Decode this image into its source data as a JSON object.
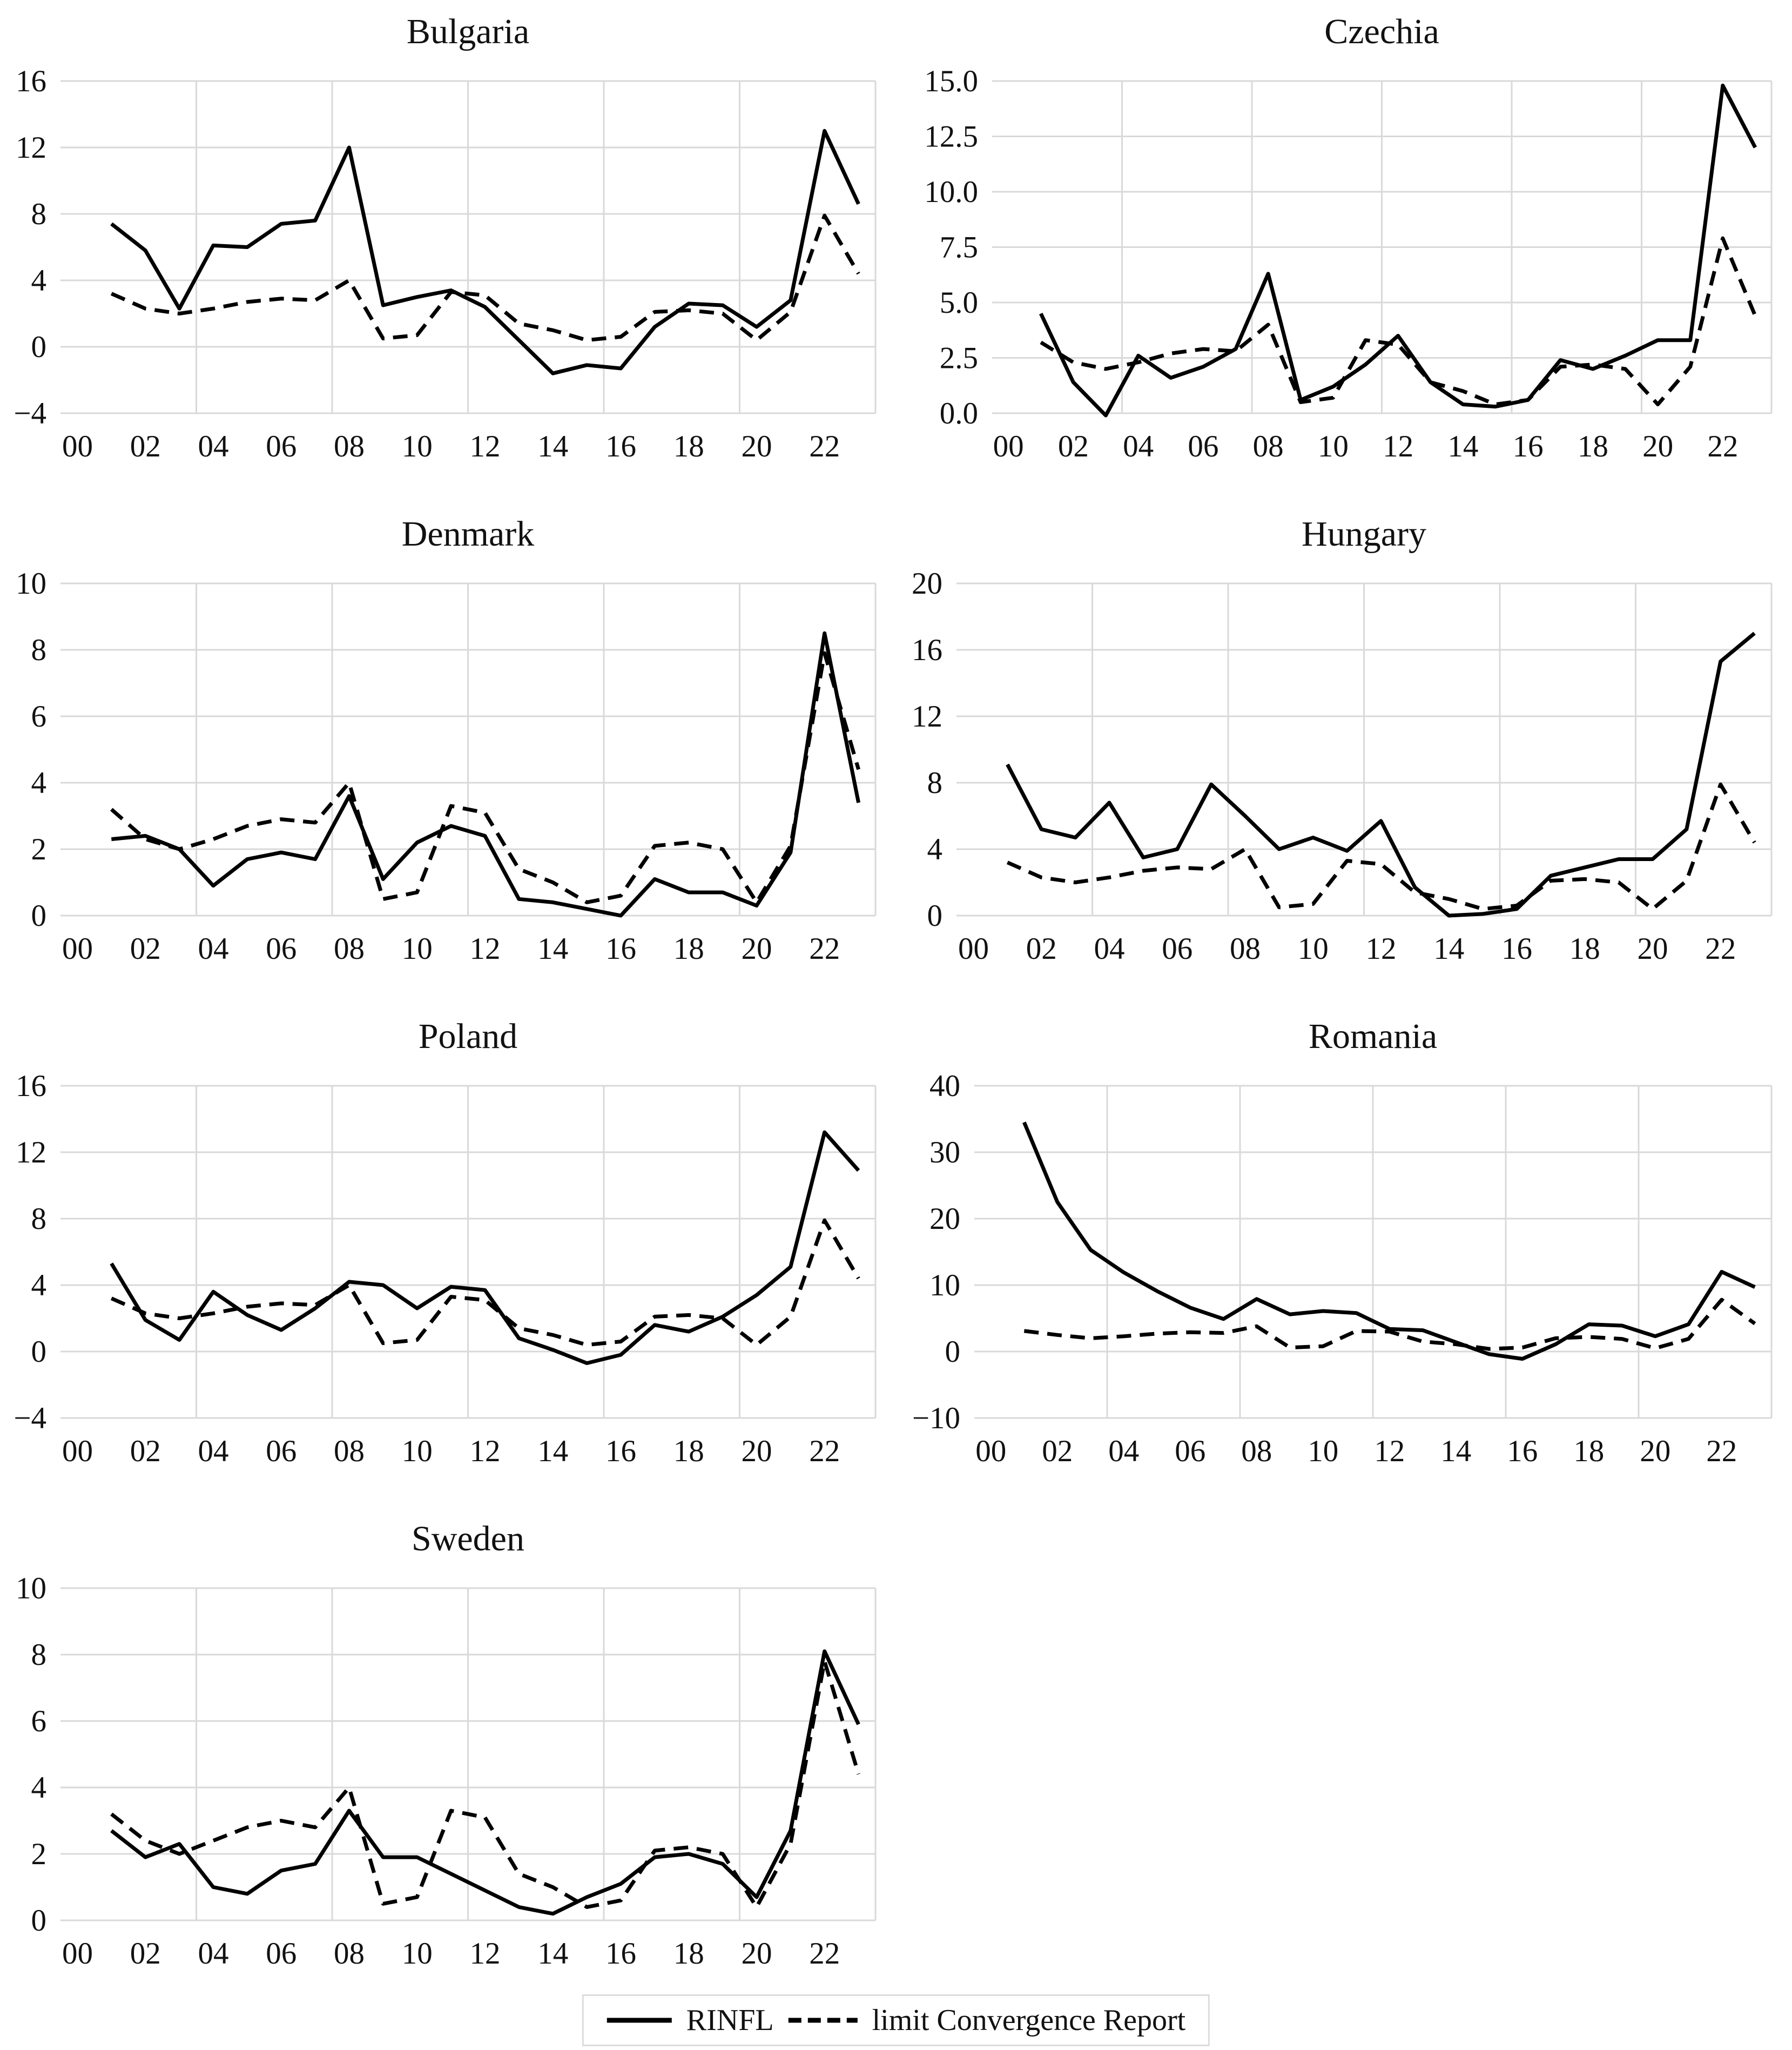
{
  "figure_title": "",
  "styles": {
    "line_color": "#000000",
    "grid_color": "#d9d9d9",
    "text_color": "#111111",
    "legend_border": "#dcdcdc",
    "background": "#ffffff"
  },
  "legend": {
    "items": [
      {
        "label": "RINFL",
        "style": "solid"
      },
      {
        "label": "limit Convergence Report",
        "style": "dashed"
      }
    ]
  },
  "chart_data": {
    "type": "line",
    "layout": "7 panels in 2 columns, shared legend bottom center",
    "x_years": [
      2001,
      2002,
      2003,
      2004,
      2005,
      2006,
      2007,
      2008,
      2009,
      2010,
      2011,
      2012,
      2013,
      2014,
      2015,
      2016,
      2017,
      2018,
      2019,
      2020,
      2021,
      2022,
      2023
    ],
    "x_range": [
      2000,
      2024
    ],
    "x_tick_labels": [
      "00",
      "02",
      "04",
      "06",
      "08",
      "10",
      "12",
      "14",
      "16",
      "18",
      "20",
      "22"
    ],
    "grid": true,
    "vertical_grid_year_boundaries": [
      2003.5,
      2007.5,
      2011.5,
      2015.5,
      2019.5,
      2023.5
    ],
    "panels": [
      {
        "title": "Bulgaria",
        "ylim": [
          -4,
          16
        ],
        "y_ticks": [
          -4,
          0,
          4,
          8,
          12,
          16
        ],
        "y_tick_labels": [
          "−4",
          "0",
          "4",
          "8",
          "12",
          "16"
        ],
        "series": [
          {
            "name": "RINFL",
            "style": "solid",
            "values": [
              7.4,
              5.8,
              2.3,
              6.1,
              6.0,
              7.4,
              7.6,
              12.0,
              2.5,
              3.0,
              3.4,
              2.4,
              0.4,
              -1.6,
              -1.1,
              -1.3,
              1.2,
              2.6,
              2.5,
              1.2,
              2.8,
              13.0,
              8.6
            ]
          },
          {
            "name": "limit Convergence Report",
            "style": "dashed",
            "values": [
              3.2,
              2.3,
              2.0,
              2.3,
              2.7,
              2.9,
              2.8,
              4.0,
              0.5,
              0.7,
              3.3,
              3.1,
              1.4,
              1.0,
              0.4,
              0.6,
              2.1,
              2.2,
              2.0,
              0.4,
              2.1,
              7.9,
              4.4
            ]
          }
        ]
      },
      {
        "title": "Czechia",
        "ylim": [
          0,
          15
        ],
        "y_ticks": [
          0,
          2.5,
          5,
          7.5,
          10,
          12.5,
          15
        ],
        "y_tick_labels": [
          "0.0",
          "2.5",
          "5.0",
          "7.5",
          "10.0",
          "12.5",
          "15.0"
        ],
        "series": [
          {
            "name": "RINFL",
            "style": "solid",
            "values": [
              4.5,
              1.4,
              -0.1,
              2.6,
              1.6,
              2.1,
              2.9,
              6.3,
              0.6,
              1.2,
              2.2,
              3.5,
              1.4,
              0.4,
              0.3,
              0.6,
              2.4,
              2.0,
              2.6,
              3.3,
              3.3,
              14.8,
              12.0
            ]
          },
          {
            "name": "limit Convergence Report",
            "style": "dashed",
            "values": [
              3.2,
              2.3,
              2.0,
              2.3,
              2.7,
              2.9,
              2.8,
              4.0,
              0.5,
              0.7,
              3.3,
              3.1,
              1.4,
              1.0,
              0.4,
              0.6,
              2.1,
              2.2,
              2.0,
              0.4,
              2.1,
              7.9,
              4.4
            ]
          }
        ]
      },
      {
        "title": "Denmark",
        "ylim": [
          0,
          10
        ],
        "y_ticks": [
          0,
          2,
          4,
          6,
          8,
          10
        ],
        "y_tick_labels": [
          "0",
          "2",
          "4",
          "6",
          "8",
          "10"
        ],
        "series": [
          {
            "name": "RINFL",
            "style": "solid",
            "values": [
              2.3,
              2.4,
              2.0,
              0.9,
              1.7,
              1.9,
              1.7,
              3.6,
              1.1,
              2.2,
              2.7,
              2.4,
              0.5,
              0.4,
              0.2,
              0.0,
              1.1,
              0.7,
              0.7,
              0.3,
              1.9,
              8.5,
              3.4
            ]
          },
          {
            "name": "limit Convergence Report",
            "style": "dashed",
            "values": [
              3.2,
              2.3,
              2.0,
              2.3,
              2.7,
              2.9,
              2.8,
              4.0,
              0.5,
              0.7,
              3.3,
              3.1,
              1.4,
              1.0,
              0.4,
              0.6,
              2.1,
              2.2,
              2.0,
              0.4,
              2.1,
              7.9,
              4.4
            ]
          }
        ]
      },
      {
        "title": "Hungary",
        "ylim": [
          0,
          20
        ],
        "y_ticks": [
          0,
          4,
          8,
          12,
          16,
          20
        ],
        "y_tick_labels": [
          "0",
          "4",
          "8",
          "12",
          "16",
          "20"
        ],
        "series": [
          {
            "name": "RINFL",
            "style": "solid",
            "values": [
              9.1,
              5.2,
              4.7,
              6.8,
              3.5,
              4.0,
              7.9,
              6.0,
              4.0,
              4.7,
              3.9,
              5.7,
              1.7,
              0.0,
              0.1,
              0.4,
              2.4,
              2.9,
              3.4,
              3.4,
              5.2,
              15.3,
              17.0
            ]
          },
          {
            "name": "limit Convergence Report",
            "style": "dashed",
            "values": [
              3.2,
              2.3,
              2.0,
              2.3,
              2.7,
              2.9,
              2.8,
              4.0,
              0.5,
              0.7,
              3.3,
              3.1,
              1.4,
              1.0,
              0.4,
              0.6,
              2.1,
              2.2,
              2.0,
              0.4,
              2.1,
              7.9,
              4.4
            ]
          }
        ]
      },
      {
        "title": "Poland",
        "ylim": [
          -4,
          16
        ],
        "y_ticks": [
          -4,
          0,
          4,
          8,
          12,
          16
        ],
        "y_tick_labels": [
          "−4",
          "0",
          "4",
          "8",
          "12",
          "16"
        ],
        "series": [
          {
            "name": "RINFL",
            "style": "solid",
            "values": [
              5.3,
              1.9,
              0.7,
              3.6,
              2.2,
              1.3,
              2.6,
              4.2,
              4.0,
              2.6,
              3.9,
              3.7,
              0.8,
              0.1,
              -0.7,
              -0.2,
              1.6,
              1.2,
              2.1,
              3.4,
              5.1,
              13.2,
              10.9
            ]
          },
          {
            "name": "limit Convergence Report",
            "style": "dashed",
            "values": [
              3.2,
              2.3,
              2.0,
              2.3,
              2.7,
              2.9,
              2.8,
              4.0,
              0.5,
              0.7,
              3.3,
              3.1,
              1.4,
              1.0,
              0.4,
              0.6,
              2.1,
              2.2,
              2.0,
              0.4,
              2.1,
              7.9,
              4.4
            ]
          }
        ]
      },
      {
        "title": "Romania",
        "ylim": [
          -10,
          40
        ],
        "y_ticks": [
          -10,
          0,
          10,
          20,
          30,
          40
        ],
        "y_tick_labels": [
          "−10",
          "0",
          "10",
          "20",
          "30",
          "40"
        ],
        "series": [
          {
            "name": "RINFL",
            "style": "solid",
            "values": [
              34.5,
              22.5,
              15.3,
              11.9,
              9.1,
              6.6,
              4.9,
              7.9,
              5.6,
              6.1,
              5.8,
              3.4,
              3.2,
              1.4,
              -0.4,
              -1.1,
              1.1,
              4.1,
              3.9,
              2.3,
              4.1,
              12.0,
              9.7
            ]
          },
          {
            "name": "limit Convergence Report",
            "style": "dashed",
            "values": [
              3.1,
              2.5,
              2.0,
              2.3,
              2.7,
              2.9,
              2.8,
              3.8,
              0.6,
              0.8,
              3.1,
              3.0,
              1.5,
              1.1,
              0.4,
              0.6,
              2.0,
              2.2,
              1.9,
              0.5,
              1.9,
              7.8,
              4.2
            ]
          }
        ]
      },
      {
        "title": "Sweden",
        "ylim": [
          0,
          10
        ],
        "y_ticks": [
          0,
          2,
          4,
          6,
          8,
          10
        ],
        "y_tick_labels": [
          "0",
          "2",
          "4",
          "6",
          "8",
          "10"
        ],
        "series": [
          {
            "name": "RINFL",
            "style": "solid",
            "values": [
              2.7,
              1.9,
              2.3,
              1.0,
              0.8,
              1.5,
              1.7,
              3.3,
              1.9,
              1.9,
              1.4,
              0.9,
              0.4,
              0.2,
              0.7,
              1.1,
              1.9,
              2.0,
              1.7,
              0.7,
              2.7,
              8.1,
              5.9
            ]
          },
          {
            "name": "limit Convergence Report",
            "style": "dashed",
            "values": [
              3.2,
              2.4,
              2.0,
              2.4,
              2.8,
              3.0,
              2.8,
              4.0,
              0.5,
              0.7,
              3.3,
              3.1,
              1.4,
              1.0,
              0.4,
              0.6,
              2.1,
              2.2,
              2.0,
              0.4,
              2.3,
              7.8,
              4.4
            ]
          }
        ]
      }
    ]
  }
}
